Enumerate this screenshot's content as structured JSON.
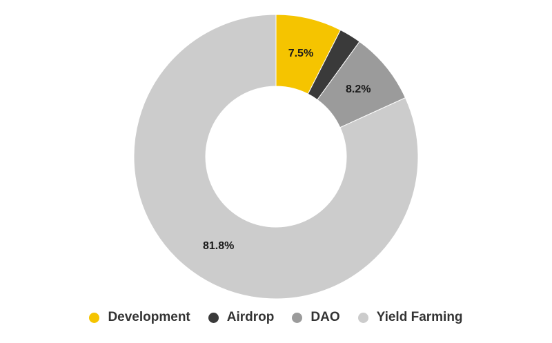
{
  "chart_data": {
    "type": "pie",
    "donut": true,
    "title": "",
    "legend_position": "bottom",
    "series": [
      {
        "name": "Development",
        "value": 7.5,
        "color": "#f5c400",
        "label": "7.5%"
      },
      {
        "name": "Airdrop",
        "value": 2.5,
        "color": "#3a3a3a",
        "label": ""
      },
      {
        "name": "DAO",
        "value": 8.2,
        "color": "#9b9b9b",
        "label": "8.2%"
      },
      {
        "name": "Yield Farming",
        "value": 81.8,
        "color": "#cccccc",
        "label": "81.8%"
      }
    ]
  }
}
